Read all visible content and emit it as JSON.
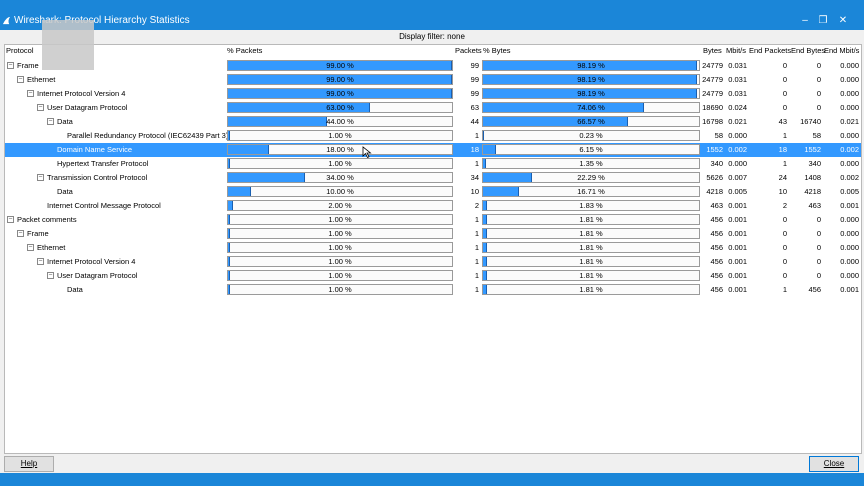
{
  "window": {
    "title": "Wireshark: Protocol Hierarchy Statistics"
  },
  "filter": {
    "label": "Display filter: none"
  },
  "columns": {
    "protocol": "Protocol",
    "pct_packets": "% Packets",
    "packets": "Packets",
    "pct_bytes": "% Bytes",
    "bytes": "Bytes",
    "mbits": "Mbit/s",
    "end_packets": "End Packets",
    "end_bytes": "End Bytes",
    "end_mbits": "End Mbit/s"
  },
  "rows": [
    {
      "name": "Frame",
      "level": 0,
      "exp": "⊟",
      "pct_packets": "99.00 %",
      "pp": 99,
      "packets": "99",
      "pct_bytes": "98.19 %",
      "pb": 98.19,
      "bytes": "24779",
      "mbits": "0.031",
      "end_packets": "0",
      "end_bytes": "0",
      "end_mbits": "0.000"
    },
    {
      "name": "Ethernet",
      "level": 1,
      "exp": "⊟",
      "pct_packets": "99.00 %",
      "pp": 99,
      "packets": "99",
      "pct_bytes": "98.19 %",
      "pb": 98.19,
      "bytes": "24779",
      "mbits": "0.031",
      "end_packets": "0",
      "end_bytes": "0",
      "end_mbits": "0.000"
    },
    {
      "name": "Internet Protocol Version 4",
      "level": 2,
      "exp": "⊟",
      "pct_packets": "99.00 %",
      "pp": 99,
      "packets": "99",
      "pct_bytes": "98.19 %",
      "pb": 98.19,
      "bytes": "24779",
      "mbits": "0.031",
      "end_packets": "0",
      "end_bytes": "0",
      "end_mbits": "0.000"
    },
    {
      "name": "User Datagram Protocol",
      "level": 3,
      "exp": "⊟",
      "pct_packets": "63.00 %",
      "pp": 63,
      "packets": "63",
      "pct_bytes": "74.06 %",
      "pb": 74.06,
      "bytes": "18690",
      "mbits": "0.024",
      "end_packets": "0",
      "end_bytes": "0",
      "end_mbits": "0.000"
    },
    {
      "name": "Data",
      "level": 4,
      "exp": "⊟",
      "pct_packets": "44.00 %",
      "pp": 44,
      "packets": "44",
      "pct_bytes": "66.57 %",
      "pb": 66.57,
      "bytes": "16798",
      "mbits": "0.021",
      "end_packets": "43",
      "end_bytes": "16740",
      "end_mbits": "0.021"
    },
    {
      "name": "Parallel Redundancy Protocol (IEC62439 Part 3)",
      "level": 5,
      "exp": "",
      "pct_packets": "1.00 %",
      "pp": 1,
      "packets": "1",
      "pct_bytes": "0.23 %",
      "pb": 0.23,
      "bytes": "58",
      "mbits": "0.000",
      "end_packets": "1",
      "end_bytes": "58",
      "end_mbits": "0.000"
    },
    {
      "name": "Domain Name Service",
      "level": 4,
      "exp": "",
      "pct_packets": "18.00 %",
      "pp": 18,
      "packets": "18",
      "pct_bytes": "6.15 %",
      "pb": 6.15,
      "bytes": "1552",
      "mbits": "0.002",
      "end_packets": "18",
      "end_bytes": "1552",
      "end_mbits": "0.002",
      "selected": true
    },
    {
      "name": "Hypertext Transfer Protocol",
      "level": 4,
      "exp": "",
      "pct_packets": "1.00 %",
      "pp": 1,
      "packets": "1",
      "pct_bytes": "1.35 %",
      "pb": 1.35,
      "bytes": "340",
      "mbits": "0.000",
      "end_packets": "1",
      "end_bytes": "340",
      "end_mbits": "0.000"
    },
    {
      "name": "Transmission Control Protocol",
      "level": 3,
      "exp": "⊟",
      "pct_packets": "34.00 %",
      "pp": 34,
      "packets": "34",
      "pct_bytes": "22.29 %",
      "pb": 22.29,
      "bytes": "5626",
      "mbits": "0.007",
      "end_packets": "24",
      "end_bytes": "1408",
      "end_mbits": "0.002"
    },
    {
      "name": "Data",
      "level": 4,
      "exp": "",
      "pct_packets": "10.00 %",
      "pp": 10,
      "packets": "10",
      "pct_bytes": "16.71 %",
      "pb": 16.71,
      "bytes": "4218",
      "mbits": "0.005",
      "end_packets": "10",
      "end_bytes": "4218",
      "end_mbits": "0.005"
    },
    {
      "name": "Internet Control Message Protocol",
      "level": 3,
      "exp": "",
      "pct_packets": "2.00 %",
      "pp": 2,
      "packets": "2",
      "pct_bytes": "1.83 %",
      "pb": 1.83,
      "bytes": "463",
      "mbits": "0.001",
      "end_packets": "2",
      "end_bytes": "463",
      "end_mbits": "0.001"
    },
    {
      "name": "Packet comments",
      "level": 0,
      "exp": "⊟",
      "pct_packets": "1.00 %",
      "pp": 1,
      "packets": "1",
      "pct_bytes": "1.81 %",
      "pb": 1.81,
      "bytes": "456",
      "mbits": "0.001",
      "end_packets": "0",
      "end_bytes": "0",
      "end_mbits": "0.000"
    },
    {
      "name": "Frame",
      "level": 1,
      "exp": "⊟",
      "pct_packets": "1.00 %",
      "pp": 1,
      "packets": "1",
      "pct_bytes": "1.81 %",
      "pb": 1.81,
      "bytes": "456",
      "mbits": "0.001",
      "end_packets": "0",
      "end_bytes": "0",
      "end_mbits": "0.000"
    },
    {
      "name": "Ethernet",
      "level": 2,
      "exp": "⊟",
      "pct_packets": "1.00 %",
      "pp": 1,
      "packets": "1",
      "pct_bytes": "1.81 %",
      "pb": 1.81,
      "bytes": "456",
      "mbits": "0.001",
      "end_packets": "0",
      "end_bytes": "0",
      "end_mbits": "0.000"
    },
    {
      "name": "Internet Protocol Version 4",
      "level": 3,
      "exp": "⊟",
      "pct_packets": "1.00 %",
      "pp": 1,
      "packets": "1",
      "pct_bytes": "1.81 %",
      "pb": 1.81,
      "bytes": "456",
      "mbits": "0.001",
      "end_packets": "0",
      "end_bytes": "0",
      "end_mbits": "0.000"
    },
    {
      "name": "User Datagram Protocol",
      "level": 4,
      "exp": "⊟",
      "pct_packets": "1.00 %",
      "pp": 1,
      "packets": "1",
      "pct_bytes": "1.81 %",
      "pb": 1.81,
      "bytes": "456",
      "mbits": "0.001",
      "end_packets": "0",
      "end_bytes": "0",
      "end_mbits": "0.000"
    },
    {
      "name": "Data",
      "level": 5,
      "exp": "",
      "pct_packets": "1.00 %",
      "pp": 1,
      "packets": "1",
      "pct_bytes": "1.81 %",
      "pb": 1.81,
      "bytes": "456",
      "mbits": "0.001",
      "end_packets": "1",
      "end_bytes": "456",
      "end_mbits": "0.001"
    }
  ],
  "buttons": {
    "help": "Help",
    "close": "Close"
  },
  "colors": {
    "titlebar": "#1b86d8",
    "selection": "#3399ff",
    "bar_fill": "#3399ff"
  }
}
